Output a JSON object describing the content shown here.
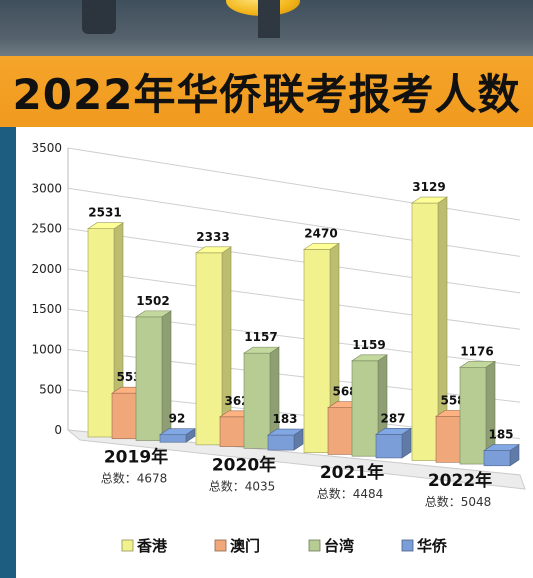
{
  "title": "2022年华侨联考报考人数",
  "colors": {
    "香港": "#f1f28e",
    "澳门": "#f0a77a",
    "台湾": "#b7cc93",
    "华侨": "#7b9ed8",
    "title_band": "#f5a52a",
    "side_bar": "#1d5d80"
  },
  "chart_data": {
    "type": "bar",
    "title": "2022年华侨联考报考人数",
    "ylim": [
      0,
      3500
    ],
    "yticks": [
      0,
      500,
      1000,
      1500,
      2000,
      2500,
      3000,
      3500
    ],
    "grid": true,
    "legend_position": "bottom",
    "categories": [
      "2019年",
      "2020年",
      "2021年",
      "2022年"
    ],
    "totals": [
      "总数：4678",
      "总数：4035",
      "总数：4484",
      "总数：5048"
    ],
    "series": [
      {
        "name": "香港",
        "values": [
          2531,
          2333,
          2470,
          3129
        ]
      },
      {
        "name": "澳门",
        "values": [
          553,
          362,
          568,
          558
        ]
      },
      {
        "name": "台湾",
        "values": [
          1502,
          1157,
          1159,
          1176
        ]
      },
      {
        "name": "华侨",
        "values": [
          92,
          183,
          287,
          185
        ]
      }
    ]
  }
}
